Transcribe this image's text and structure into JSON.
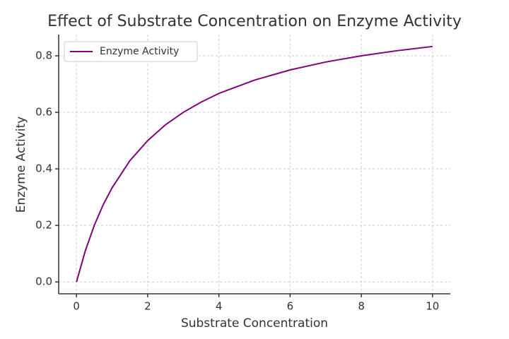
{
  "chart_data": {
    "type": "line",
    "title": "Effect of Substrate Concentration on Enzyme Activity",
    "x_label": "Substrate Concentration",
    "y_label": "Enzyme Activity",
    "x": [
      0,
      0.25,
      0.5,
      0.75,
      1,
      1.5,
      2,
      2.5,
      3,
      3.5,
      4,
      5,
      6,
      7,
      8,
      9,
      10
    ],
    "series": [
      {
        "name": "Enzyme Activity",
        "color": "#800080",
        "values": [
          0,
          0.111,
          0.2,
          0.273,
          0.333,
          0.429,
          0.5,
          0.556,
          0.6,
          0.636,
          0.667,
          0.714,
          0.75,
          0.778,
          0.8,
          0.818,
          0.833
        ]
      }
    ],
    "xlim": [
      -0.5,
      10.5
    ],
    "xticks": [
      0,
      2,
      4,
      6,
      8,
      10
    ],
    "ylim": [
      -0.042,
      0.875
    ],
    "yticks": [
      {
        "value": 0,
        "label": "0.0"
      },
      0.2,
      0.4,
      0.6,
      0.8
    ],
    "grid": true,
    "legend": "upper-left"
  }
}
